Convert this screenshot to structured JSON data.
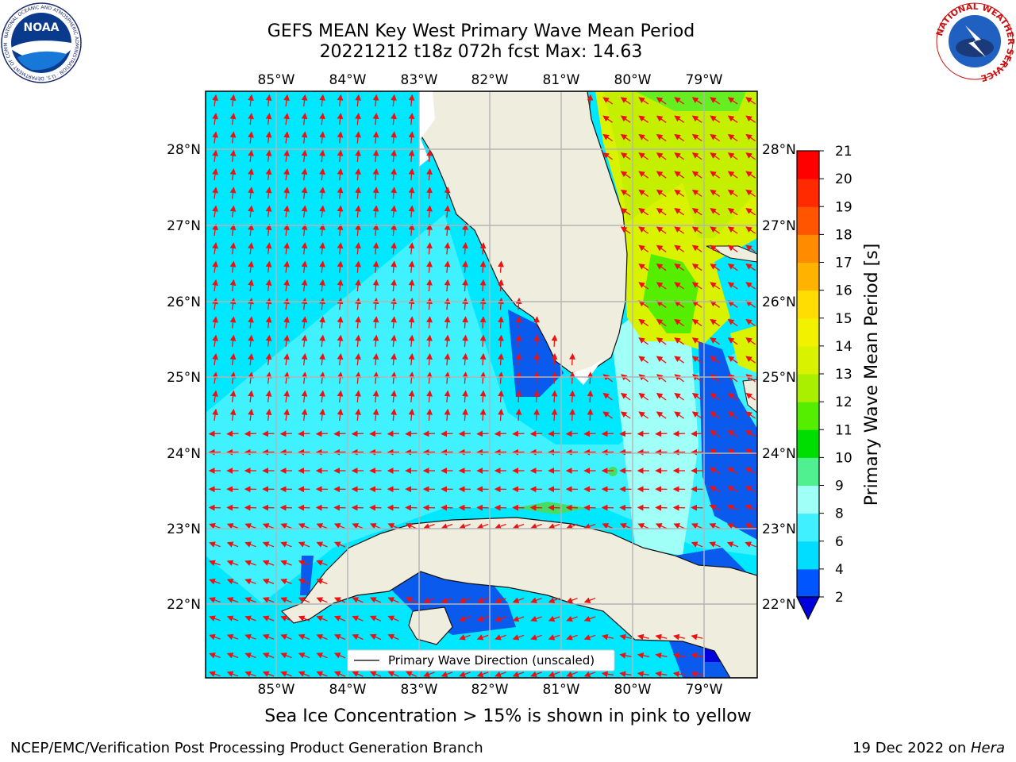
{
  "title": {
    "line1": "GEFS MEAN Key West Primary Wave Mean Period",
    "line2": "20221212 t18z 072h fcst   Max: 14.63"
  },
  "longitude_labels": [
    "85°W",
    "84°W",
    "83°W",
    "82°W",
    "81°W",
    "80°W",
    "79°W"
  ],
  "latitude_labels": [
    "28°N",
    "27°N",
    "26°N",
    "25°N",
    "24°N",
    "23°N",
    "22°N"
  ],
  "colorbar": {
    "label": "Primary Wave Mean Period [s]",
    "ticks": [
      "2",
      "4",
      "6",
      "8",
      "9",
      "10",
      "11",
      "12",
      "13",
      "14",
      "15",
      "16",
      "17",
      "18",
      "19",
      "20",
      "21"
    ],
    "colors": [
      "#0055ff",
      "#00ddff",
      "#40f0ff",
      "#a0fff6",
      "#50f090",
      "#00dd00",
      "#55ee00",
      "#aaee00",
      "#d9f200",
      "#f2f200",
      "#ffdd00",
      "#ffb300",
      "#ff8c00",
      "#ff5500",
      "#ff2a00",
      "#ff0000"
    ],
    "extend_color": "#0000dd"
  },
  "legend": {
    "label": "Primary Wave Direction (unscaled)"
  },
  "footnote": "Sea Ice Concentration > 15% is shown in pink to yellow",
  "credits": {
    "left": "NCEP/EMC/Verification Post Processing Product Generation Branch",
    "right_prefix": "19 Dec 2022 on ",
    "right_italic": "Hera"
  },
  "logos": {
    "noaa_text": "NOAA",
    "noaa_ring": "NATIONAL OCEANIC AND ATMOSPHERIC ADMINISTRATION · U.S. DEPARTMENT OF COMMERCE",
    "nws_ring": "NATIONAL WEATHER SERVICE"
  },
  "colors": {
    "land": "#efeddd",
    "ocean_base": "#00e8ff",
    "ocean_light": "#3ff4ff",
    "deep_blue": "#0a5aee",
    "arrow": "#ee1111",
    "grid": "#b4b4b4"
  }
}
